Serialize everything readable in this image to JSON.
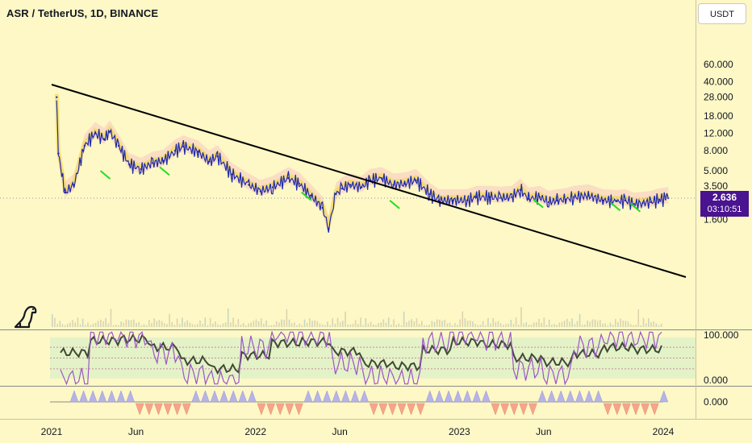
{
  "header": {
    "symbol": "ASR / TetherUS, 1D, BINANCE"
  },
  "currency_button": "USDT",
  "price_tag": {
    "price": "2.636",
    "countdown": "03:10:51",
    "color": "#4a1390"
  },
  "icons": {
    "logo": "dinosaur-icon"
  },
  "colors": {
    "background": "#fdf8c6",
    "candles": "#1e2aa8",
    "trendline": "#000000",
    "signal": "#22dd22",
    "cloud": "#f8c7c0"
  },
  "chart_data": [
    {
      "type": "line",
      "panel": "price",
      "scale": "log",
      "ylim": [
        1.2,
        75
      ],
      "y_ticks": [
        "60.000",
        "40.000",
        "28.000",
        "18.000",
        "12.000",
        "8.000",
        "5.000",
        "3.500",
        "1.600"
      ],
      "x_ticks": [
        "2021",
        "Jun",
        "2022",
        "Jun",
        "2023",
        "Jun",
        "2024"
      ],
      "series": [
        {
          "x": [
            "2021-01-10",
            "2021-01-13",
            "2021-01-25",
            "2021-02-10",
            "2021-03-01",
            "2021-03-20",
            "2021-04-05",
            "2021-04-15",
            "2021-05-01",
            "2021-05-20",
            "2021-06-10",
            "2021-07-01",
            "2021-07-20",
            "2021-08-10",
            "2021-08-25",
            "2021-09-20",
            "2021-10-10",
            "2021-10-25",
            "2021-11-20",
            "2021-12-20",
            "2022-01-10",
            "2022-02-01",
            "2022-03-01",
            "2022-03-20",
            "2022-04-10",
            "2022-05-01",
            "2022-05-12",
            "2022-05-25",
            "2022-06-05",
            "2022-06-20",
            "2022-07-10",
            "2022-07-25",
            "2022-08-15",
            "2022-09-05",
            "2022-09-25",
            "2022-10-15",
            "2022-11-09",
            "2022-11-25",
            "2022-12-20",
            "2023-01-15",
            "2023-02-01",
            "2023-02-25",
            "2023-03-15",
            "2023-04-05",
            "2023-04-20",
            "2023-05-05",
            "2023-05-25",
            "2023-06-10",
            "2023-06-25",
            "2023-07-10",
            "2023-07-25",
            "2023-08-20",
            "2023-09-15",
            "2023-10-10",
            "2023-10-25",
            "2023-11-10",
            "2023-11-25",
            "2023-12-10",
            "2023-12-25",
            "2024-01-05",
            "2024-01-10"
          ],
          "y": [
            28,
            7.5,
            3.0,
            3.6,
            9,
            12,
            10.5,
            12.5,
            9,
            5.8,
            5.2,
            6,
            6.3,
            8,
            8.8,
            7.8,
            6.2,
            7,
            4.6,
            3.6,
            3.1,
            3.4,
            4.2,
            3.7,
            2.8,
            2.1,
            1.3,
            2.9,
            3.3,
            3.6,
            3.4,
            4.0,
            4.2,
            3.6,
            3.7,
            4.0,
            2.9,
            2.5,
            2.5,
            2.5,
            2.7,
            2.7,
            2.65,
            2.7,
            3.2,
            2.6,
            2.7,
            2.4,
            2.5,
            2.55,
            2.7,
            2.8,
            2.5,
            2.45,
            2.5,
            2.3,
            2.35,
            2.4,
            2.55,
            2.6,
            2.636
          ]
        }
      ]
    },
    {
      "type": "line",
      "panel": "oscillator",
      "ylim": [
        0,
        100
      ],
      "y_ticks": [
        "100.000",
        "0.000"
      ],
      "bands": [
        30,
        50,
        70
      ],
      "series": [
        {
          "name": "",
          "values": [
            60,
            82,
            85,
            70,
            45,
            30,
            55,
            78,
            80,
            62,
            40,
            35,
            65,
            80,
            75,
            50,
            42,
            58,
            70,
            66
          ]
        },
        {
          "name": "",
          "values": [
            10,
            95,
            90,
            60,
            20,
            5,
            70,
            98,
            92,
            40,
            15,
            8,
            80,
            96,
            85,
            30,
            18,
            72,
            90,
            88
          ]
        }
      ]
    },
    {
      "type": "area",
      "panel": "histogram",
      "y_ticks": [
        "0.000"
      ],
      "series": []
    }
  ]
}
